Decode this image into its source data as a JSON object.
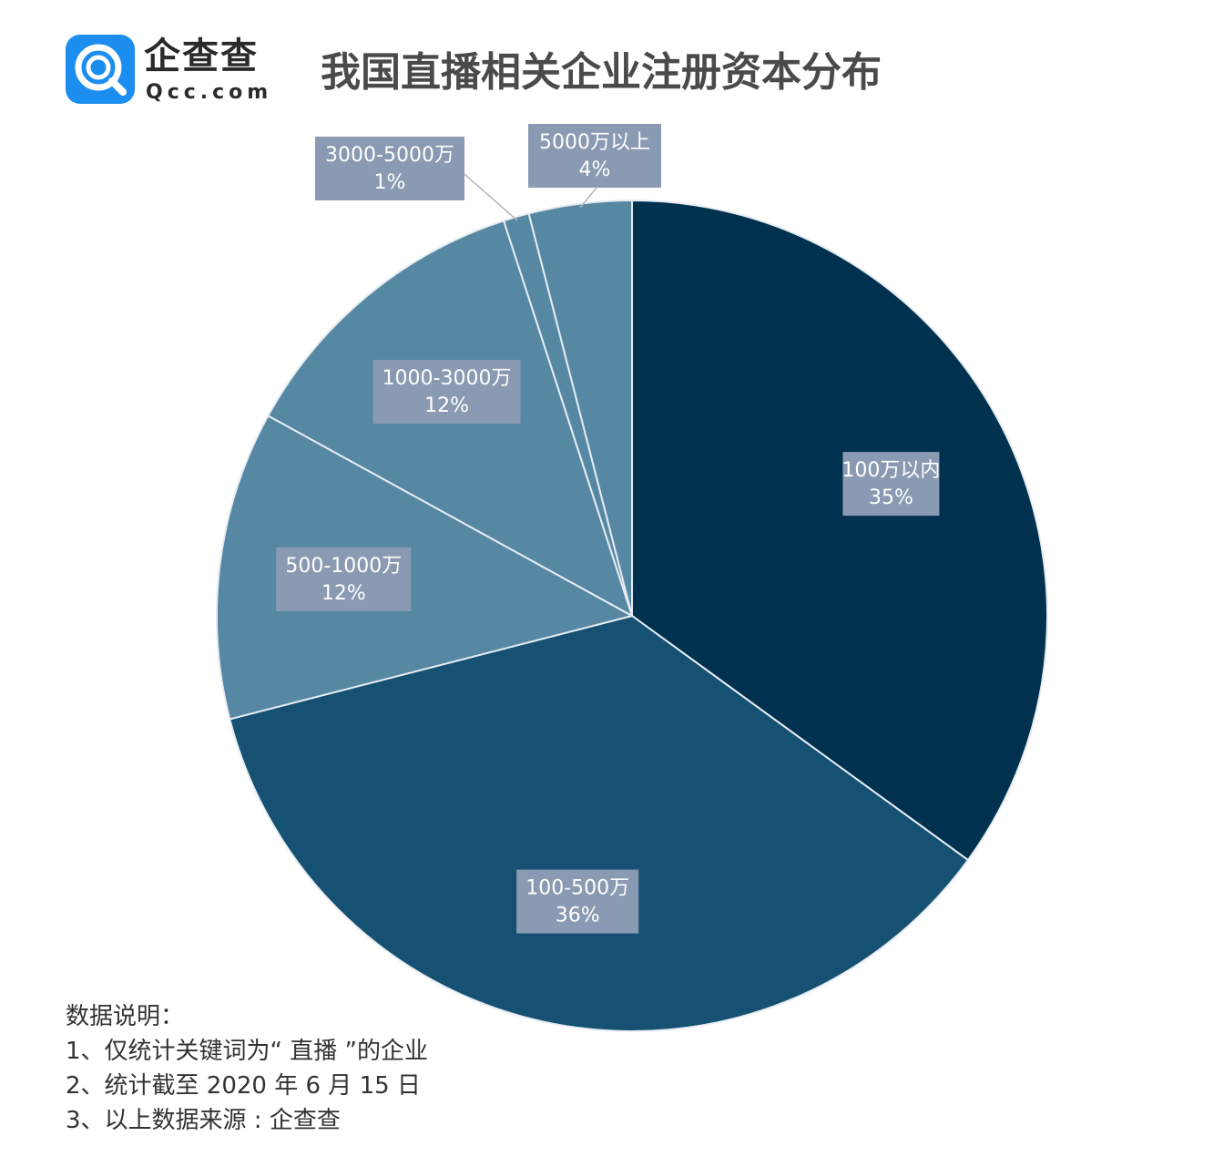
{
  "brand": {
    "name": "企查查",
    "domain": "Qcc.com",
    "colors": {
      "logo_bg": "#1b8ef0",
      "logo_fg": "#ffffff"
    }
  },
  "title": "我国直播相关企业注册资本分布",
  "chart_data": {
    "type": "pie",
    "title": "我国直播相关企业注册资本分布",
    "start_angle_deg": 0,
    "direction": "clockwise",
    "label_box_color": "#8a9ab2",
    "slices": [
      {
        "label": "100万以内",
        "value": 35,
        "value_label": "35%",
        "color": "#00314f"
      },
      {
        "label": "100-500万",
        "value": 36,
        "value_label": "36%",
        "color": "#165173"
      },
      {
        "label": "500-1000万",
        "value": 12,
        "value_label": "12%",
        "color": "#5688a3"
      },
      {
        "label": "1000-3000万",
        "value": 12,
        "value_label": "12%",
        "color": "#5688a3"
      },
      {
        "label": "3000-5000万",
        "value": 1,
        "value_label": "1%",
        "color": "#5688a3"
      },
      {
        "label": "5000万以上",
        "value": 4,
        "value_label": "4%",
        "color": "#5688a3"
      }
    ]
  },
  "notes": {
    "heading": "数据说明：",
    "items": [
      "1、仅统计关键词为“ 直播 ”的企业",
      "2、统计截至 2020 年 6 月 15 日",
      "3、以上数据来源 : 企查查"
    ]
  }
}
